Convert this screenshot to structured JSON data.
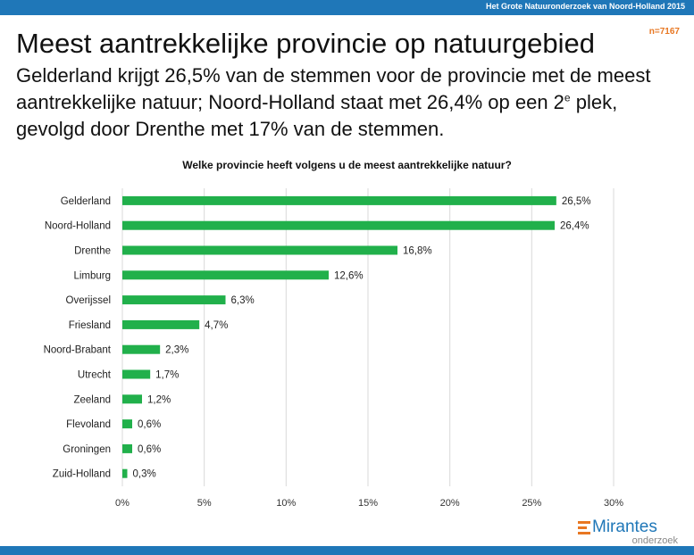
{
  "header": {
    "top_label": "Het Grote Natuuronderzoek van Noord-Holland 2015",
    "title": "Meest aantrekkelijke provincie op natuurgebied",
    "sample": "n=7167",
    "subtitle_part1": "Gelderland krijgt 26,5% van de stemmen voor de provincie met de meest aantrekkelijke natuur; Noord-Holland staat met 26,4% op een 2",
    "subtitle_sup": "e",
    "subtitle_part2": " plek, gevolgd door Drenthe met 17% van de stemmen."
  },
  "footer": {
    "logo_name": "Mirantes",
    "logo_sub": "onderzoek"
  },
  "colors": {
    "bar": "#21b04b",
    "brand_blue": "#1f77b8",
    "accent_orange": "#e87722"
  },
  "chart_data": {
    "type": "bar",
    "orientation": "horizontal",
    "title": "Welke provincie heeft volgens u de meest aantrekkelijke natuur?",
    "categories": [
      "Gelderland",
      "Noord-Holland",
      "Drenthe",
      "Limburg",
      "Overijssel",
      "Friesland",
      "Noord-Brabant",
      "Utrecht",
      "Zeeland",
      "Flevoland",
      "Groningen",
      "Zuid-Holland"
    ],
    "values": [
      26.5,
      26.4,
      16.8,
      12.6,
      6.3,
      4.7,
      2.3,
      1.7,
      1.2,
      0.6,
      0.6,
      0.3
    ],
    "value_labels": [
      "26,5%",
      "26,4%",
      "16,8%",
      "12,6%",
      "6,3%",
      "4,7%",
      "2,3%",
      "1,7%",
      "1,2%",
      "0,6%",
      "0,6%",
      "0,3%"
    ],
    "xlim": [
      0,
      30
    ],
    "xticks": [
      0,
      5,
      10,
      15,
      20,
      25,
      30
    ],
    "xtick_labels": [
      "0%",
      "5%",
      "10%",
      "15%",
      "20%",
      "25%",
      "30%"
    ],
    "xlabel": "",
    "ylabel": "",
    "grid": true,
    "legend": "none"
  }
}
